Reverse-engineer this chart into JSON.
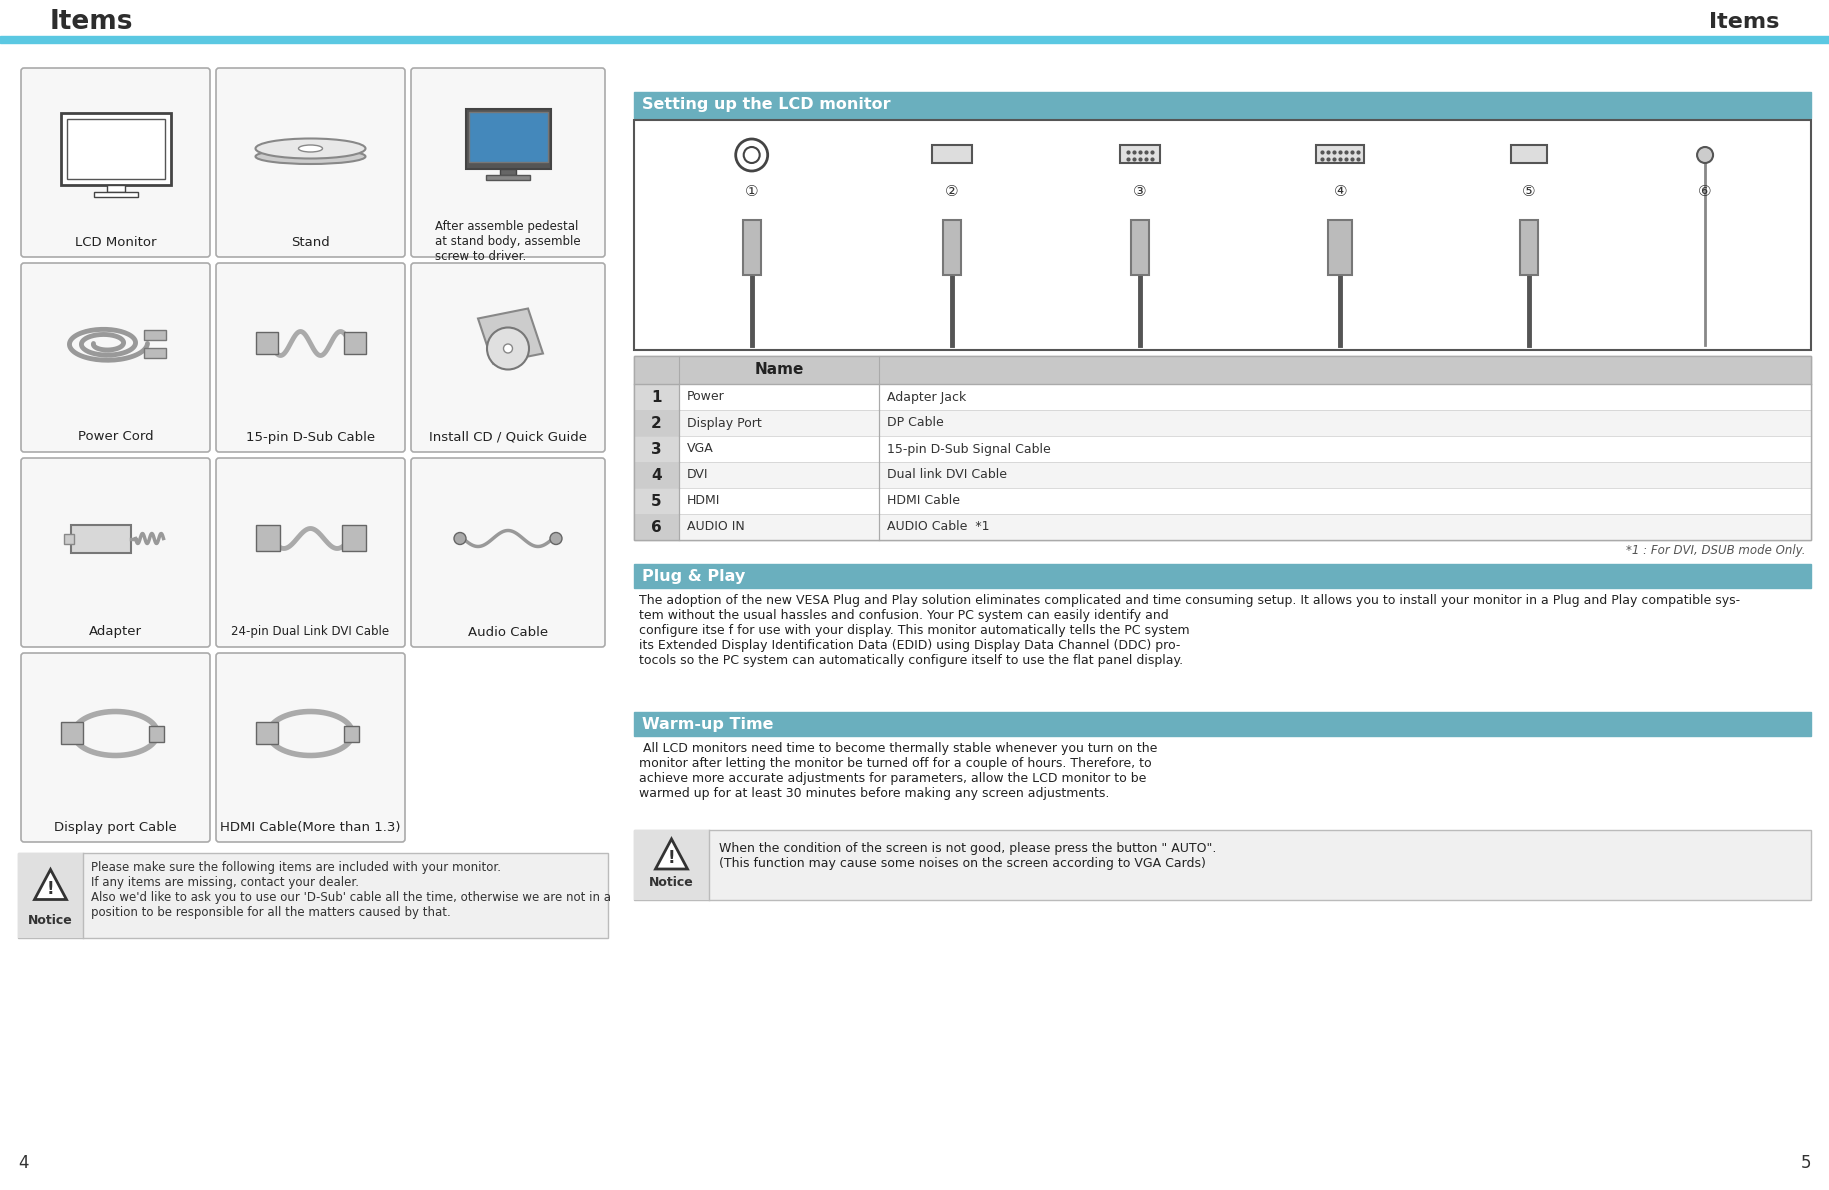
{
  "title": "Items",
  "header_color": "#5BC8E2",
  "header_text_color": "#2d2d2d",
  "background_color": "#ffffff",
  "page_numbers": [
    "4",
    "5"
  ],
  "left_col_labels": [
    [
      "LCD Monitor",
      "Stand",
      ""
    ],
    [
      "Power Cord",
      "15-pin D-Sub Cable",
      ""
    ],
    [
      "Adapter",
      "24-pin Dual Link DVI Cable",
      ""
    ],
    [
      "Display port Cable",
      "HDMI Cable(More than 1.3)",
      ""
    ]
  ],
  "right_col_labels": [
    "After assemble pedestal\nat stand body, assemble\nscrew to driver.",
    "Install CD / Quick Guide",
    "Audio Cable",
    ""
  ],
  "notice_text_left": "Please make sure the following items are included with your monitor.\nIf any items are missing, contact your dealer.\nAlso we'd like to ask you to use our 'D-Sub' cable all the time, otherwise we are not in a\nposition to be responsible for all the matters caused by that.",
  "right_section_title": "Setting up the LCD monitor",
  "right_section_title_bg": "#6aafbe",
  "table_header": "Name",
  "table_header_bg": "#c8c8c8",
  "table_rows": [
    [
      "1",
      "Power",
      "Adapter Jack"
    ],
    [
      "2",
      "Display Port",
      "DP Cable"
    ],
    [
      "3",
      "VGA",
      "15-pin D-Sub Signal Cable"
    ],
    [
      "4",
      "DVI",
      "Dual link DVI Cable"
    ],
    [
      "5",
      "HDMI",
      "HDMI Cable"
    ],
    [
      "6",
      "AUDIO IN",
      "AUDIO Cable  *1"
    ]
  ],
  "table_note": "*1 : For DVI, DSUB mode Only.",
  "plug_play_title": "Plug & Play",
  "plug_play_title_bg": "#6aafbe",
  "plug_play_text": "The adoption of the new VESA Plug and Play solution eliminates complicated and time consuming setup. It allows you to install your monitor in a Plug and Play compatible sys-\ntem without the usual hassles and confusion. Your PC system can easily identify and\nconfigure itse f for use with your display. This monitor automatically tells the PC system\nits Extended Display Identification Data (EDID) using Display Data Channel (DDC) pro-\ntocols so the PC system can automatically configure itself to use the flat panel display.",
  "warmup_title": "Warm-up Time",
  "warmup_title_bg": "#6aafbe",
  "warmup_text": " All LCD monitors need time to become thermally stable whenever you turn on the\nmonitor after letting the monitor be turned off for a couple of hours. Therefore, to\nachieve more accurate adjustments for parameters, allow the LCD monitor to be\nwarmed up for at least 30 minutes before making any screen adjustments.",
  "notice_text_right": "When the condition of the screen is not good, please press the button \" AUTO\".\n(This function may cause some noises on the screen according to VGA Cards)"
}
